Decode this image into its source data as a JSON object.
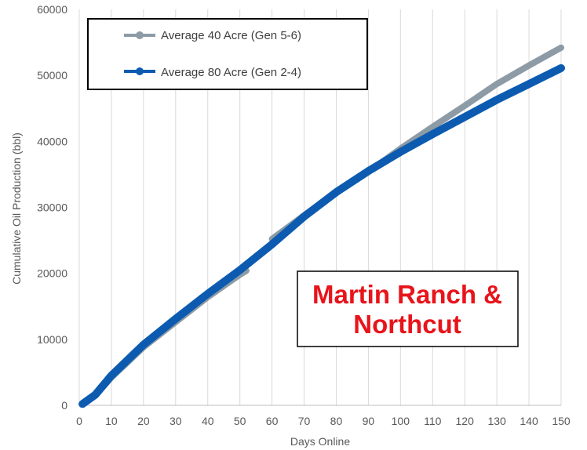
{
  "chart_data": {
    "type": "line",
    "xlabel": "Days Online",
    "ylabel": "Cumulative Oil Production (bbl)",
    "xlim": [
      0,
      150
    ],
    "ylim": [
      0,
      60000
    ],
    "x_ticks": [
      "0",
      "10",
      "20",
      "30",
      "40",
      "50",
      "60",
      "70",
      "80",
      "90",
      "100",
      "110",
      "120",
      "130",
      "140",
      "150"
    ],
    "y_ticks": [
      "0",
      "10000",
      "20000",
      "30000",
      "40000",
      "50000",
      "60000"
    ],
    "grid": "vertical",
    "legend_position": "top-left",
    "annotation": [
      "Martin Ranch &",
      "Northcut"
    ],
    "series": [
      {
        "name": "Average 40 Acre (Gen 5-6)",
        "color": "#8c9ba6",
        "segments": [
          {
            "x": [
              1,
              5,
              10,
              20,
              30,
              40,
              50,
              52
            ],
            "y": [
              200,
              1500,
              4200,
              8800,
              12600,
              16400,
              19800,
              20400
            ]
          },
          {
            "x": [
              60,
              70,
              80,
              90,
              100,
              110,
              120,
              130,
              140,
              150
            ],
            "y": [
              25200,
              28800,
              32300,
              35400,
              38900,
              42200,
              45400,
              48700,
              51500,
              54200
            ]
          }
        ]
      },
      {
        "name": "Average 80 Acre (Gen 2-4)",
        "color": "#0d5bb0",
        "segments": [
          {
            "x": [
              1,
              5,
              10,
              20,
              30,
              40,
              50,
              60,
              70,
              80,
              90,
              100,
              110,
              120,
              130,
              140,
              150
            ],
            "y": [
              200,
              1600,
              4500,
              9200,
              13100,
              16900,
              20500,
              24400,
              28600,
              32300,
              35500,
              38400,
              41100,
              43700,
              46300,
              48700,
              51100
            ]
          }
        ]
      }
    ]
  }
}
